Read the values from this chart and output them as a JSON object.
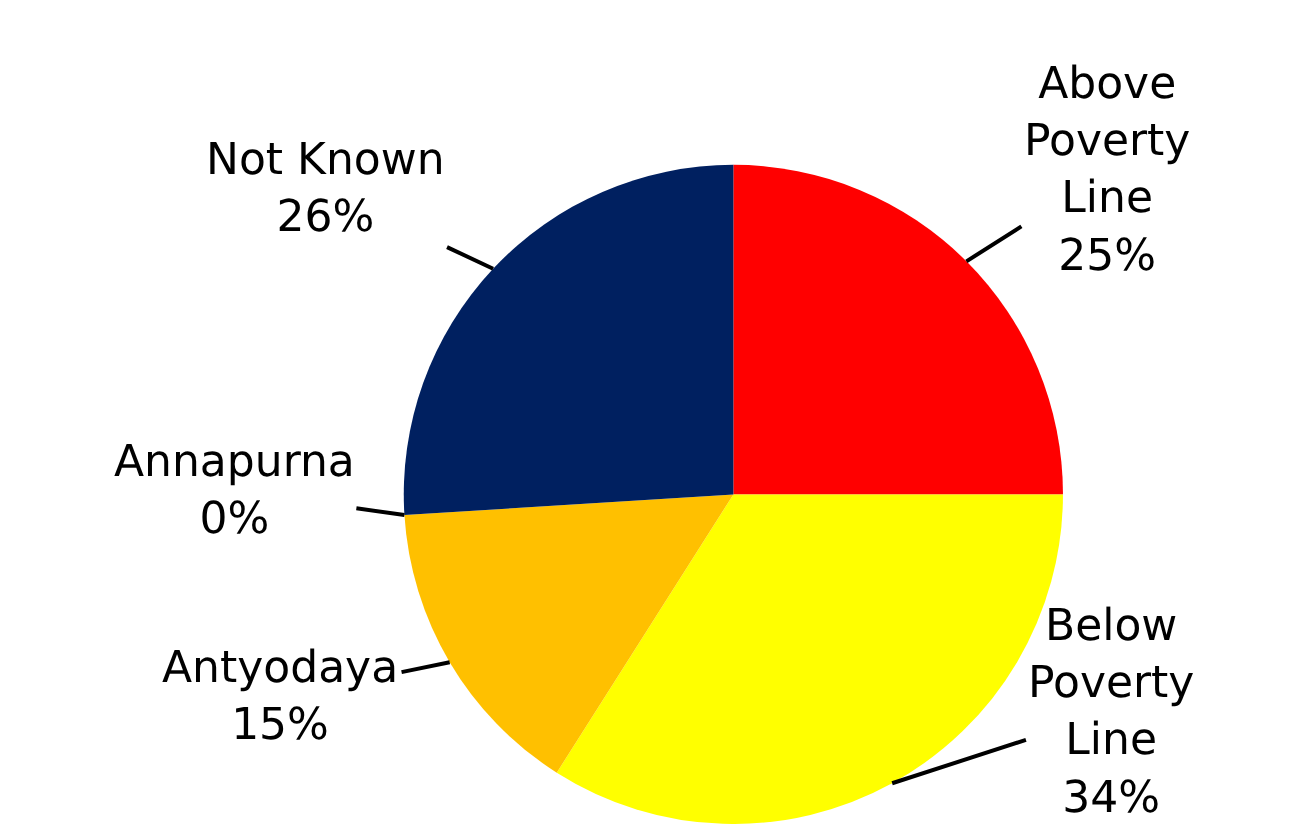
{
  "chart_data": {
    "type": "pie",
    "categories": [
      "Above Poverty Line",
      "Below Poverty Line",
      "Antyodaya",
      "Annapurna",
      "Not Known"
    ],
    "values": [
      25,
      34,
      15,
      0,
      26
    ],
    "colors": [
      "#ff0000",
      "#ffff00",
      "#ffc000",
      "#ffc000",
      "#002060"
    ],
    "value_labels": [
      "25%",
      "34%",
      "15%",
      "0%",
      "26%"
    ],
    "legend": false
  }
}
